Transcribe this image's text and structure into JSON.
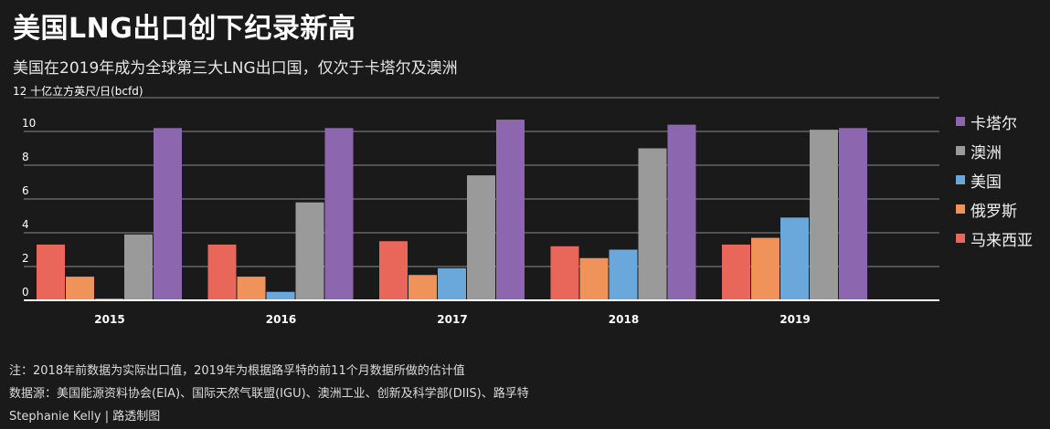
{
  "header": {
    "title": "美国LNG出口创下纪录新高",
    "subtitle": "美国在2019年成为全球第三大LNG出口国，仅次于卡塔尔及澳洲"
  },
  "chart_data": {
    "type": "bar",
    "title": "美国LNG出口创下纪录新高",
    "subtitle": "美国在2019年成为全球第三大LNG出口国，仅次于卡塔尔及澳洲",
    "ylabel": "十亿立方英尺/日(bcfd)",
    "ylim": [
      0,
      12
    ],
    "yticks": [
      0,
      2,
      4,
      6,
      8,
      10,
      12
    ],
    "grid": true,
    "legend_position": "right",
    "categories": [
      "2015",
      "2016",
      "2017",
      "2018",
      "2019"
    ],
    "series": [
      {
        "name": "马来西亚",
        "color": "#e8675a",
        "values": [
          3.3,
          3.3,
          3.5,
          3.2,
          3.3
        ]
      },
      {
        "name": "俄罗斯",
        "color": "#f0935a",
        "values": [
          1.4,
          1.4,
          1.5,
          2.5,
          3.7
        ]
      },
      {
        "name": "美国",
        "color": "#6aa8dc",
        "values": [
          0.1,
          0.5,
          1.9,
          3.0,
          4.9
        ]
      },
      {
        "name": "澳洲",
        "color": "#9a9a9a",
        "values": [
          3.9,
          5.8,
          7.4,
          9.0,
          10.1
        ]
      },
      {
        "name": "卡塔尔",
        "color": "#8c67b0",
        "values": [
          10.2,
          10.2,
          10.7,
          10.4,
          10.2
        ]
      }
    ],
    "legend_order": [
      "卡塔尔",
      "澳洲",
      "美国",
      "俄罗斯",
      "马来西亚"
    ]
  },
  "footer": {
    "note": "注：2018年前数据为实际出口值，2019年为根据路孚特的前11个月数据所做的估计值",
    "source": "数据源：美国能源资料协会(EIA)、国际天然气联盟(IGU)、澳洲工业、创新及科学部(DIIS)、路孚特",
    "credit": "Stephanie Kelly | 路透制图"
  },
  "colors": {
    "background": "#1b1a1a",
    "gridline": "#8a8a8a",
    "axis": "#ffffff"
  }
}
